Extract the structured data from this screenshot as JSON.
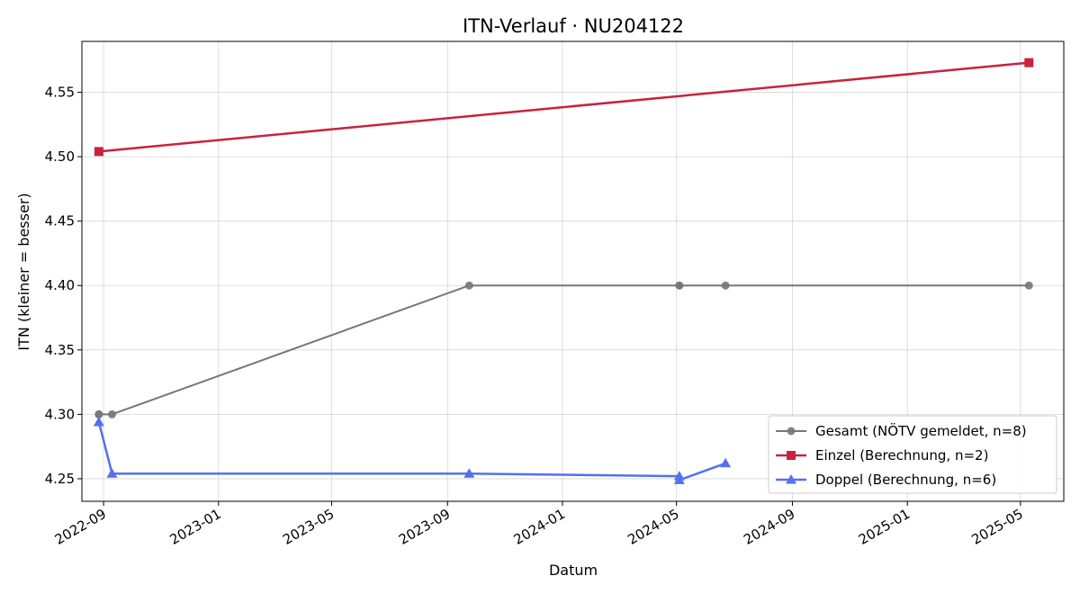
{
  "chart_data": {
    "type": "line",
    "title": "ITN-Verlauf · NU204122",
    "xlabel": "Datum",
    "ylabel": "ITN  (kleiner = besser)",
    "xlim": [
      "2022-08-09",
      "2025-06-16"
    ],
    "ylim": [
      4.2325,
      4.5895
    ],
    "grid": true,
    "legend_position": "lower-right",
    "x_ticks": [
      "2022-09",
      "2023-01",
      "2023-05",
      "2023-09",
      "2024-01",
      "2024-05",
      "2024-09",
      "2025-01",
      "2025-05"
    ],
    "y_ticks": [
      "4.25",
      "4.30",
      "4.35",
      "4.40",
      "4.45",
      "4.50",
      "4.55"
    ],
    "series": [
      {
        "name": "Gesamt (NÖTV gemeldet, n=8)",
        "color": "#777777",
        "marker": "circle",
        "points": [
          {
            "x": "2022-08-27",
            "y": 4.3
          },
          {
            "x": "2022-08-27",
            "y": 4.3
          },
          {
            "x": "2022-09-10",
            "y": 4.3
          },
          {
            "x": "2023-09-24",
            "y": 4.4
          },
          {
            "x": "2024-05-04",
            "y": 4.4
          },
          {
            "x": "2024-05-04",
            "y": 4.4
          },
          {
            "x": "2024-06-22",
            "y": 4.4
          },
          {
            "x": "2025-05-10",
            "y": 4.4
          }
        ]
      },
      {
        "name": "Einzel (Berechnung, n=2)",
        "color": "#c8223e",
        "marker": "square",
        "points": [
          {
            "x": "2022-08-27",
            "y": 4.504
          },
          {
            "x": "2025-05-10",
            "y": 4.573
          }
        ]
      },
      {
        "name": "Doppel (Berechnung, n=6)",
        "color": "#5470ee",
        "marker": "triangle",
        "points": [
          {
            "x": "2022-08-27",
            "y": 4.294
          },
          {
            "x": "2022-09-10",
            "y": 4.254
          },
          {
            "x": "2023-09-24",
            "y": 4.254
          },
          {
            "x": "2024-05-04",
            "y": 4.252
          },
          {
            "x": "2024-05-04",
            "y": 4.249
          },
          {
            "x": "2024-06-22",
            "y": 4.262
          }
        ]
      }
    ]
  }
}
